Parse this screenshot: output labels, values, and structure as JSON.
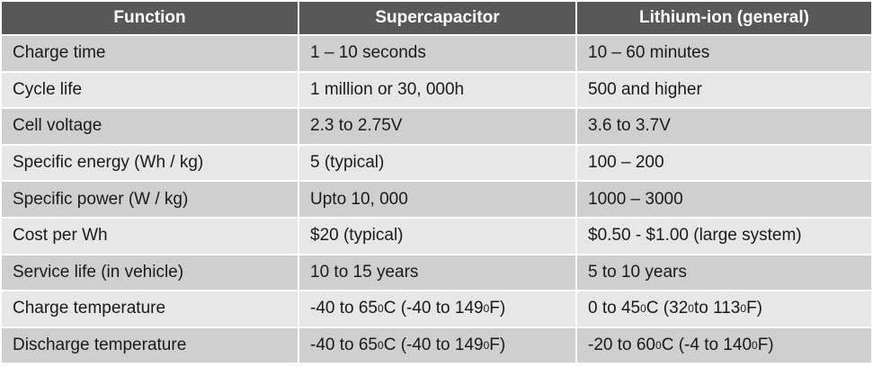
{
  "table": {
    "headers": [
      "Function",
      "Supercapacitor",
      "Lithium-ion (general)"
    ],
    "rows": [
      {
        "function": "Charge time",
        "supercap": "1 – 10 seconds",
        "liion": "10 – 60 minutes"
      },
      {
        "function": "Cycle life",
        "supercap": "1 million or 30, 000h",
        "liion": "500 and higher"
      },
      {
        "function": "Cell voltage",
        "supercap": "2.3 to 2.75V",
        "liion": "3.6 to 3.7V"
      },
      {
        "function": "Specific energy (Wh / kg)",
        "supercap": "5 (typical)",
        "liion": "100 – 200"
      },
      {
        "function": "Specific power (W / kg)",
        "supercap": "Upto  10, 000",
        "liion": "1000 – 3000"
      },
      {
        "function": "Cost per Wh",
        "supercap": "$20 (typical)",
        "liion": "$0.50 - $1.00 (large system)"
      },
      {
        "function": "Service life (in vehicle)",
        "supercap": "10 to 15 years",
        "liion": "5 to 10 years"
      },
      {
        "function": "Charge temperature",
        "supercap": {
          "a": "-40 to 65",
          "b": "C (-40 to 149",
          "c": "F)",
          "sup": "0"
        },
        "liion": {
          "a": "0 to 45",
          "b": "C (32",
          "c": " to 113",
          "d": "F)",
          "sup": "0"
        }
      },
      {
        "function": "Discharge temperature",
        "supercap": {
          "a": "-40 to 65",
          "b": "C (-40 to 149",
          "c": "F)",
          "sup": "0"
        },
        "liion": {
          "a": "-20 to 60",
          "b": "C (-4 to 140",
          "c": "F)",
          "sup": "0"
        }
      }
    ]
  }
}
